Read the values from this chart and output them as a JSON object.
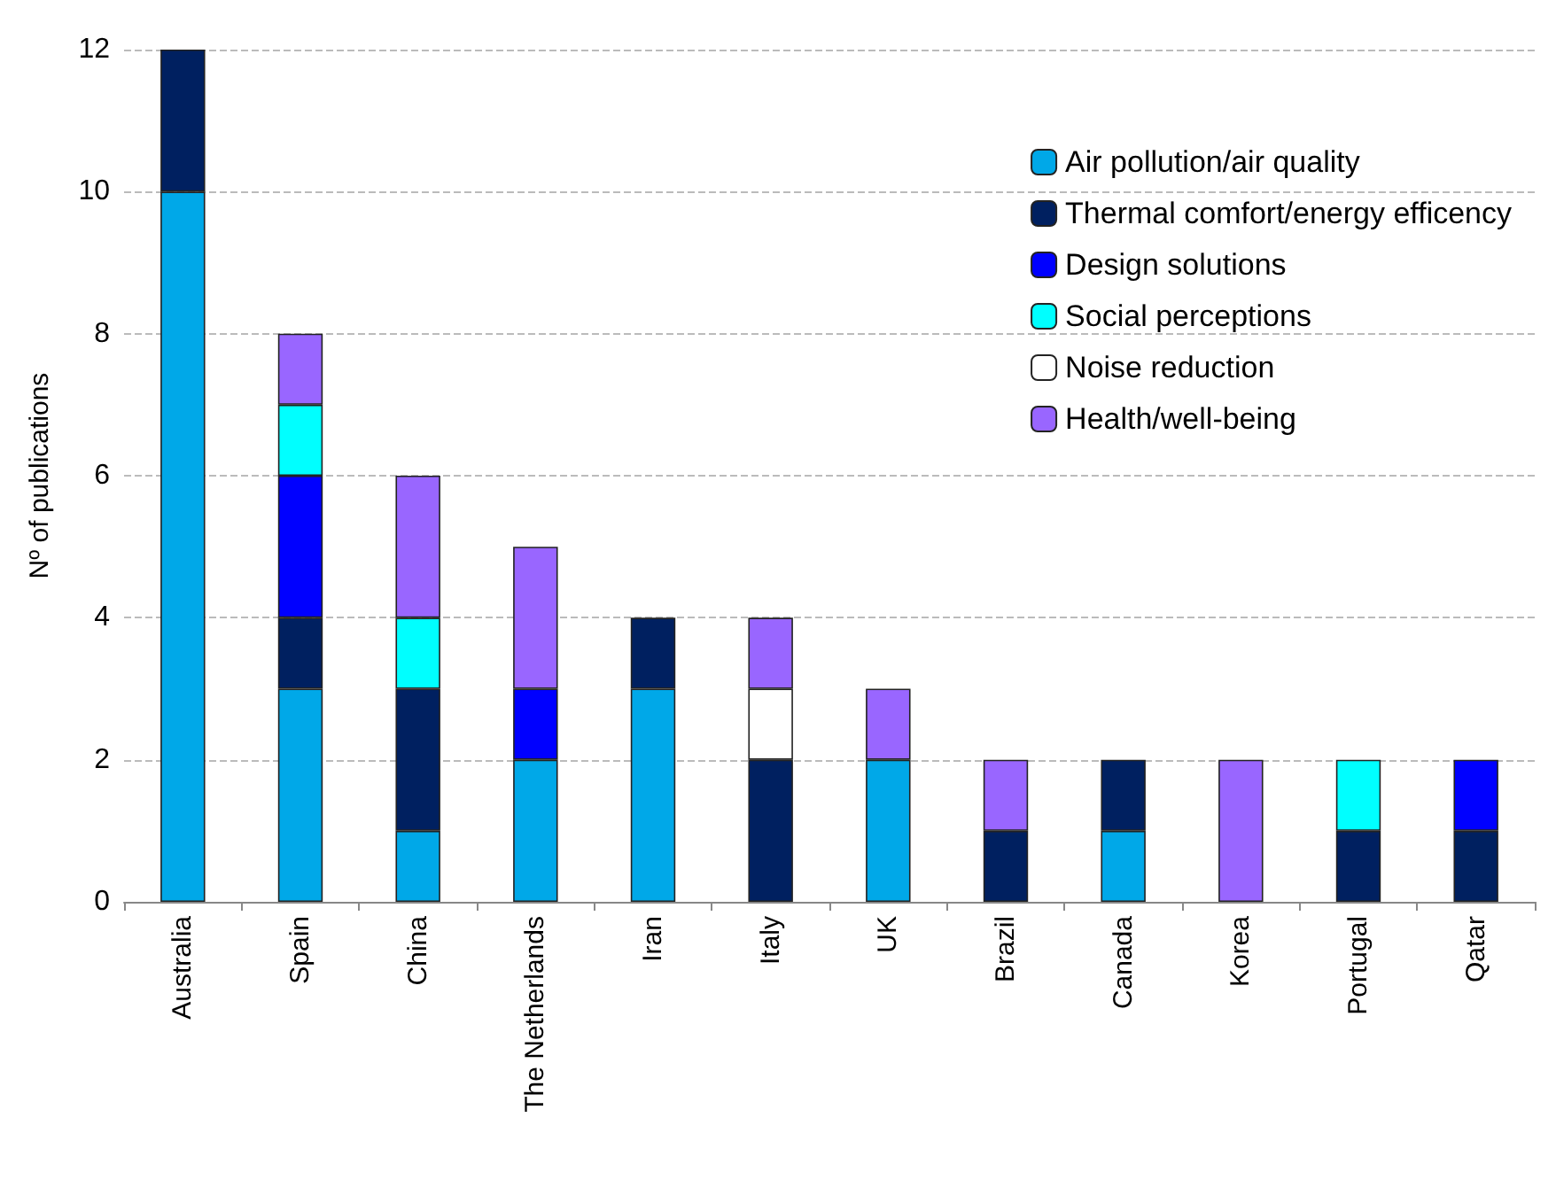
{
  "chart_data": {
    "type": "bar",
    "ylabel": "Nº of publications",
    "stacked": true,
    "grid": "y",
    "legend": "top right",
    "categories": [
      "Australia",
      "Spain",
      "China",
      "The Netherlands",
      "Iran",
      "Italy",
      "UK",
      "Brazil",
      "Canada",
      "Korea",
      "Portugal",
      "Qatar"
    ],
    "ylim": [
      0,
      12
    ],
    "yticks": [
      0,
      2,
      4,
      6,
      8,
      10,
      12
    ],
    "series": [
      {
        "name": "Air pollution/air quality",
        "color": "#00a8e8",
        "values": [
          10,
          3,
          1,
          2,
          3,
          0,
          2,
          0,
          1,
          0,
          0,
          0
        ]
      },
      {
        "name": "Thermal comfort/energy efficency",
        "color": "#002060",
        "values": [
          2,
          1,
          2,
          0,
          1,
          2,
          0,
          1,
          1,
          0,
          1,
          1
        ]
      },
      {
        "name": "Design solutions",
        "color": "#0000ff",
        "values": [
          0,
          2,
          0,
          1,
          0,
          0,
          0,
          0,
          0,
          0,
          0,
          1
        ]
      },
      {
        "name": "Social perceptions",
        "color": "#00ffff",
        "values": [
          0,
          1,
          1,
          0,
          0,
          0,
          0,
          0,
          0,
          0,
          1,
          0
        ]
      },
      {
        "name": "Noise reduction",
        "color": "#ffffff",
        "values": [
          0,
          0,
          0,
          0,
          0,
          1,
          0,
          0,
          0,
          0,
          0,
          0
        ]
      },
      {
        "name": "Health/well-being",
        "color": "#9966ff",
        "values": [
          0,
          1,
          2,
          2,
          0,
          1,
          1,
          1,
          0,
          2,
          0,
          0
        ]
      }
    ]
  }
}
